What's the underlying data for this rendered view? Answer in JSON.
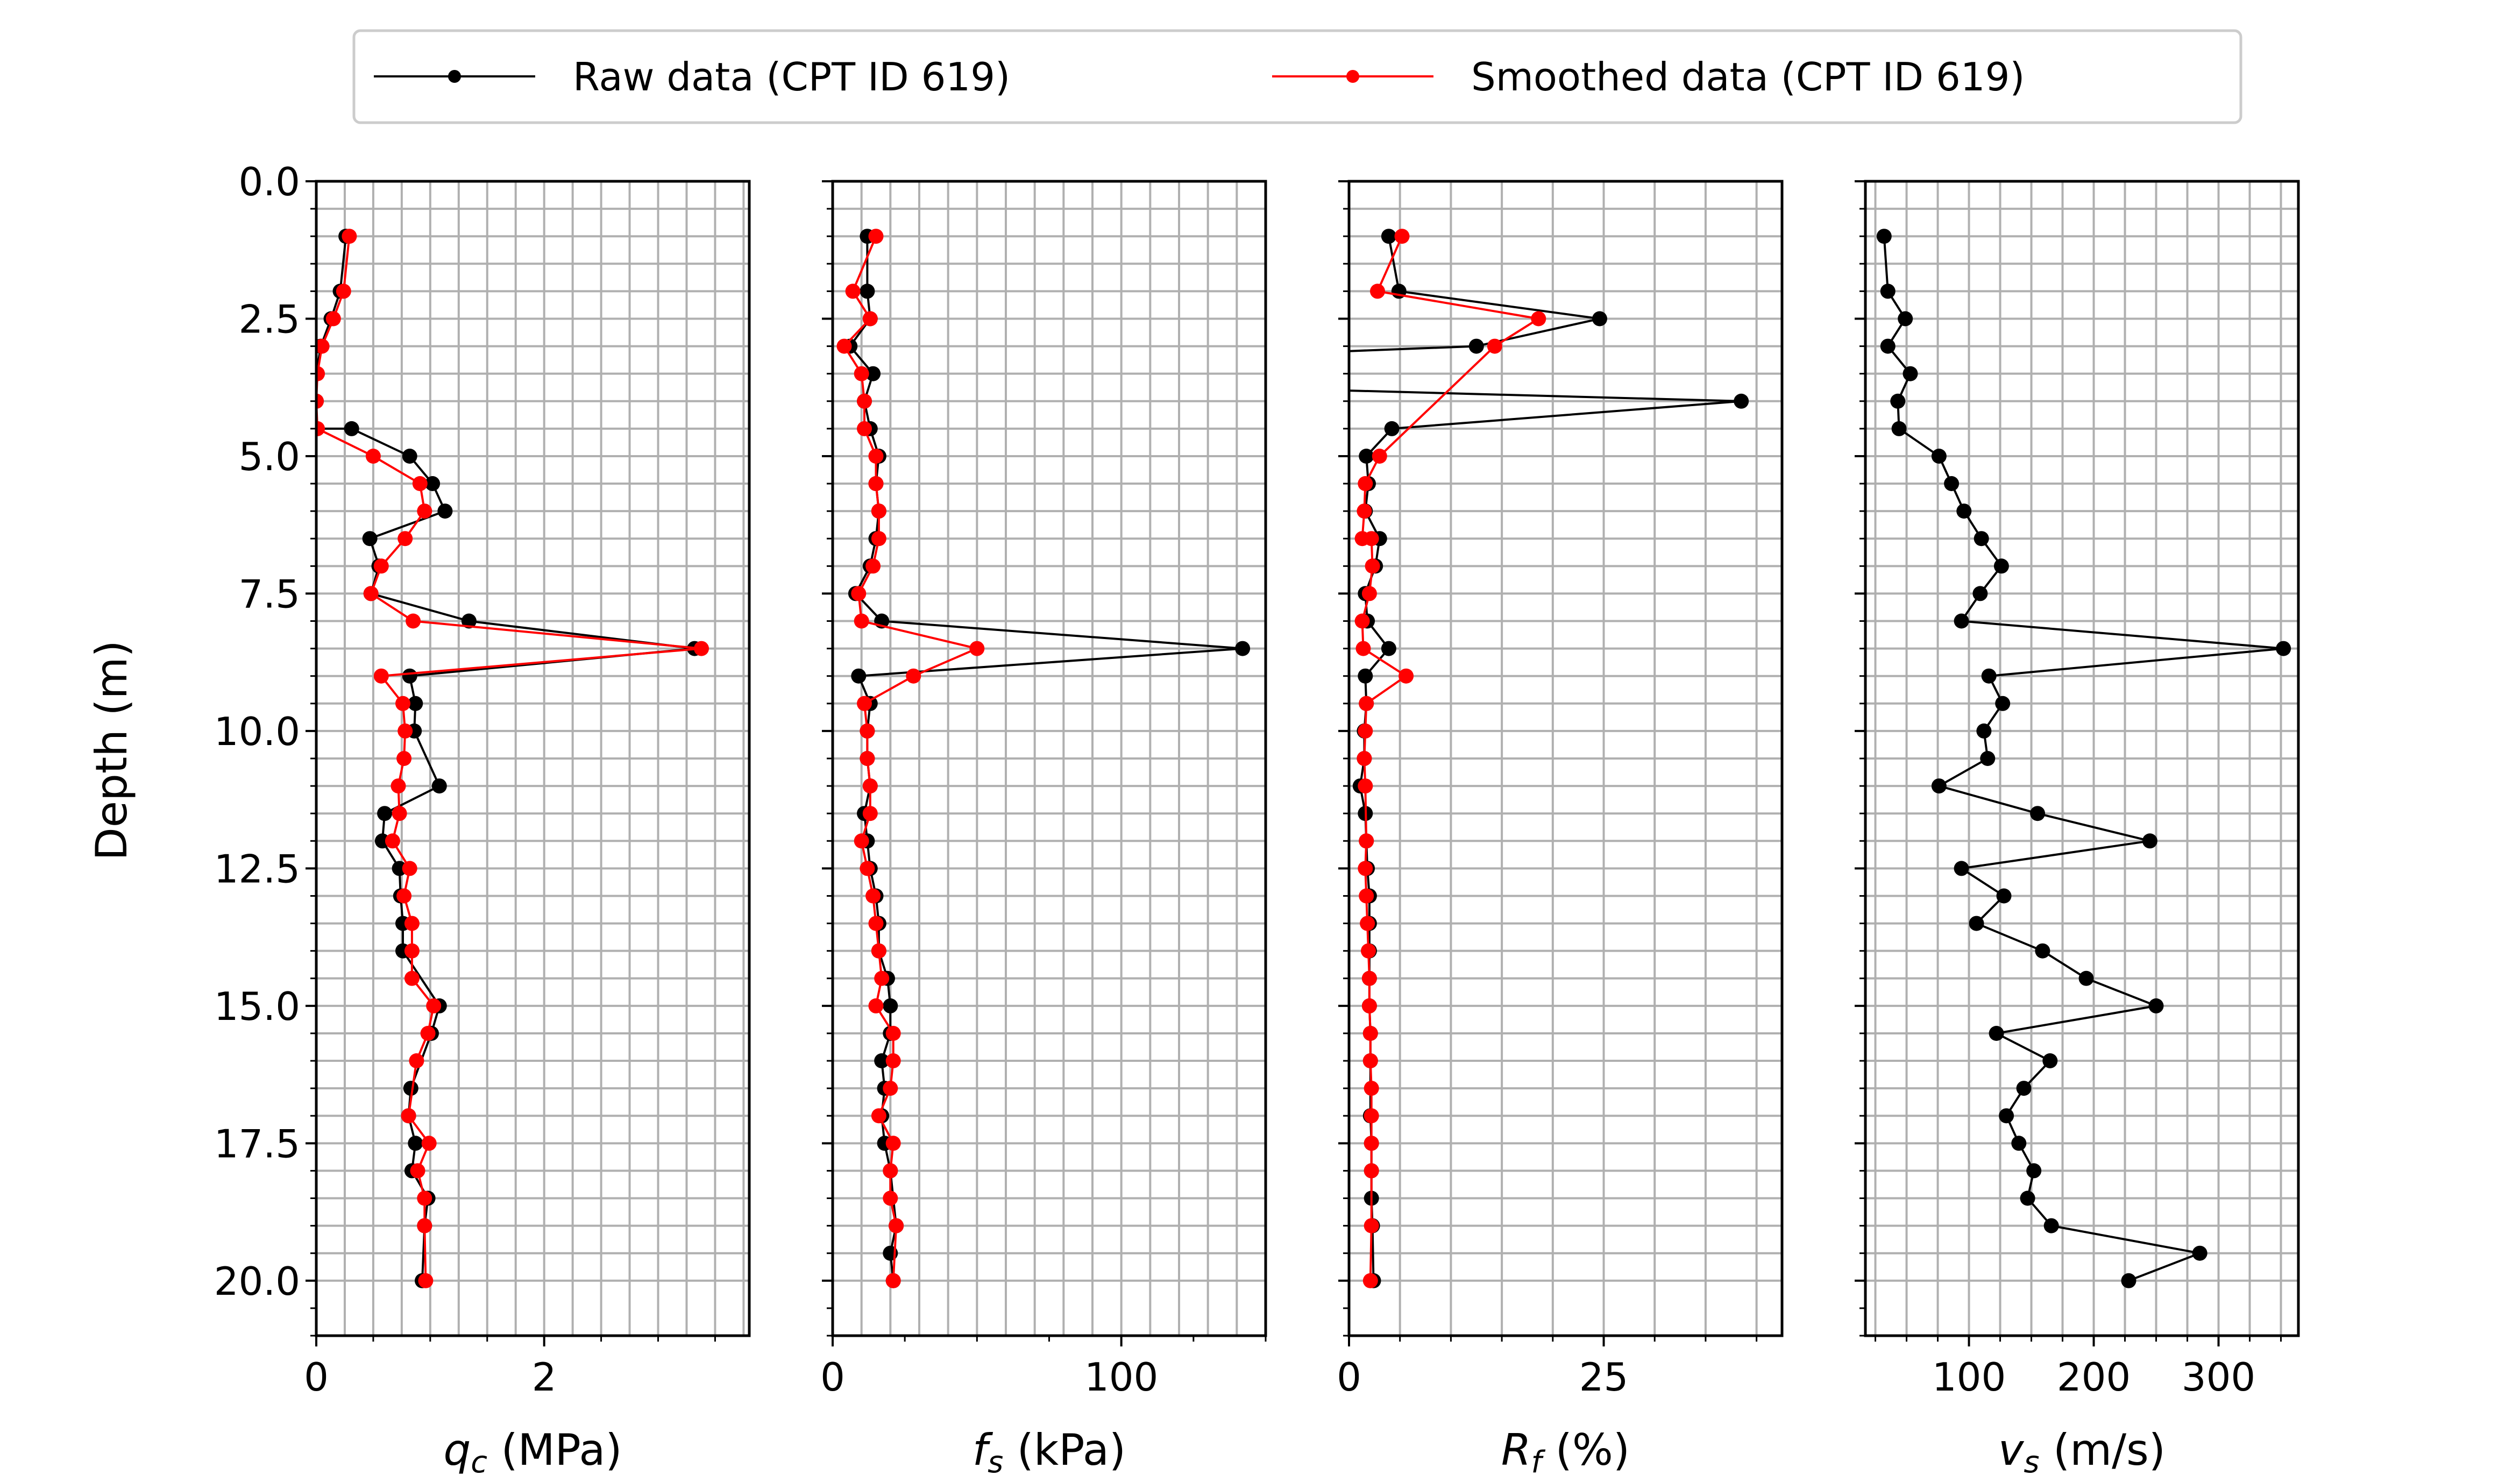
{
  "figure": {
    "ylabel": "Depth (m)",
    "legend": {
      "location": "top-center",
      "entries": [
        {
          "label": "Raw data (CPT ID 619)",
          "color": "#000000"
        },
        {
          "label": "Smoothed data (CPT ID 619)",
          "color": "#ff0000"
        }
      ]
    }
  },
  "colors": {
    "raw": "#000000",
    "smoothed": "#ff0000",
    "grid": "#b0b0b0"
  },
  "chart_data": [
    {
      "type": "line",
      "xlabel": {
        "sym": "q",
        "sub": "c",
        "unit": " (MPa)"
      },
      "xlim": [
        0,
        3.8
      ],
      "ylim": [
        21,
        0
      ],
      "grid": true,
      "xticks": [
        {
          "v": 0,
          "label": "0"
        },
        {
          "v": 2,
          "label": "2"
        }
      ],
      "xgrid": [
        0,
        0.25,
        0.5,
        0.75,
        1,
        1.25,
        1.5,
        1.75,
        2,
        2.25,
        2.5,
        2.75,
        3,
        3.25,
        3.5,
        3.75
      ],
      "yticks": [
        {
          "v": 0,
          "label": "0.0"
        },
        {
          "v": 2.5,
          "label": "2.5"
        },
        {
          "v": 5,
          "label": "5.0"
        },
        {
          "v": 7.5,
          "label": "7.5"
        },
        {
          "v": 10,
          "label": "10.0"
        },
        {
          "v": 12.5,
          "label": "12.5"
        },
        {
          "v": 15,
          "label": "15.0"
        },
        {
          "v": 17.5,
          "label": "17.5"
        },
        {
          "v": 20,
          "label": "20.0"
        }
      ],
      "series": [
        {
          "name": "Raw data (CPT ID 619)",
          "x": [
            0.26,
            0.21,
            0.13,
            0.04,
            0.0,
            0.0,
            0.0,
            0.31,
            0.82,
            1.02,
            1.13,
            0.47,
            0.55,
            0.48,
            1.34,
            3.32,
            0.82,
            0.87,
            0.86,
            1.08,
            0.6,
            0.58,
            0.73,
            0.74,
            0.76,
            0.76,
            1.08,
            1.01,
            0.83,
            0.81,
            0.87,
            0.84,
            0.98,
            0.95,
            0.93
          ],
          "y": [
            1.0,
            2.0,
            2.5,
            3.0,
            3.5,
            4.0,
            4.5,
            4.5,
            5.0,
            5.5,
            6.0,
            6.5,
            7.0,
            7.5,
            8.0,
            8.5,
            9.0,
            9.5,
            10.0,
            11.0,
            11.5,
            12.0,
            12.5,
            13.0,
            13.5,
            14.0,
            15.0,
            15.5,
            16.5,
            17.0,
            17.5,
            18.0,
            18.5,
            19.0,
            20.0
          ]
        },
        {
          "name": "Smoothed data (CPT ID 619)",
          "x": [
            0.29,
            0.24,
            0.15,
            0.05,
            0.01,
            0.0,
            0.01,
            0.5,
            0.91,
            0.95,
            0.78,
            0.57,
            0.48,
            0.85,
            3.38,
            0.57,
            0.76,
            0.78,
            0.77,
            0.72,
            0.73,
            0.67,
            0.82,
            0.77,
            0.84,
            0.84,
            0.84,
            1.03,
            0.98,
            0.88,
            0.81,
            0.99,
            0.89,
            0.95,
            0.95,
            0.96
          ],
          "y": [
            1.0,
            2.0,
            2.5,
            3.0,
            3.5,
            4.0,
            4.5,
            5.0,
            5.5,
            6.0,
            6.5,
            7.0,
            7.5,
            8.0,
            8.5,
            9.0,
            9.5,
            10.0,
            10.5,
            11.0,
            11.5,
            12.0,
            12.5,
            13.0,
            13.5,
            14.0,
            14.5,
            15.0,
            15.5,
            16.0,
            17.0,
            17.5,
            18.0,
            18.5,
            19.0,
            20.0
          ]
        }
      ]
    },
    {
      "type": "line",
      "xlabel": {
        "sym": "f",
        "sub": "s",
        "unit": " (kPa)"
      },
      "xlim": [
        0,
        150
      ],
      "ylim": [
        21,
        0
      ],
      "grid": true,
      "xticks": [
        {
          "v": 0,
          "label": "0"
        },
        {
          "v": 100,
          "label": "100"
        }
      ],
      "xgrid": [
        0,
        10,
        20,
        30,
        40,
        50,
        60,
        70,
        80,
        90,
        100,
        110,
        120,
        130,
        140
      ],
      "yticks": [
        {
          "v": 0,
          "label": ""
        },
        {
          "v": 2.5,
          "label": ""
        },
        {
          "v": 5,
          "label": ""
        },
        {
          "v": 7.5,
          "label": ""
        },
        {
          "v": 10,
          "label": ""
        },
        {
          "v": 12.5,
          "label": ""
        },
        {
          "v": 15,
          "label": ""
        },
        {
          "v": 17.5,
          "label": ""
        },
        {
          "v": 20,
          "label": ""
        }
      ],
      "series": [
        {
          "name": "Raw data (CPT ID 619)",
          "x": [
            12,
            12,
            13,
            6,
            14,
            11,
            13,
            16,
            15,
            16,
            15,
            13,
            8,
            17,
            142,
            9,
            13,
            12,
            12,
            13,
            11,
            12,
            13,
            15,
            16,
            16,
            19,
            20,
            20,
            17,
            18,
            17,
            18,
            20,
            22,
            20,
            21
          ],
          "y": [
            1.0,
            2.0,
            2.5,
            3.0,
            3.5,
            4.0,
            4.5,
            5.0,
            5.5,
            6.0,
            6.5,
            7.0,
            7.5,
            8.0,
            8.5,
            9.0,
            9.5,
            10.0,
            10.5,
            11.0,
            11.5,
            12.0,
            12.5,
            13.0,
            13.5,
            14.0,
            14.5,
            15.0,
            15.5,
            16.0,
            16.5,
            17.0,
            17.5,
            18.0,
            19.0,
            19.5,
            20.0
          ]
        },
        {
          "name": "Smoothed data (CPT ID 619)",
          "x": [
            15,
            7,
            13,
            4,
            10,
            11,
            11,
            15,
            15,
            16,
            16,
            14,
            9,
            10,
            50,
            28,
            11,
            12,
            12,
            13,
            13,
            10,
            12,
            14,
            15,
            16,
            17,
            15,
            21,
            21,
            20,
            16,
            21,
            20,
            20,
            22,
            21
          ],
          "y": [
            1.0,
            2.0,
            2.5,
            3.0,
            3.5,
            4.0,
            4.5,
            5.0,
            5.5,
            6.0,
            6.5,
            7.0,
            7.5,
            8.0,
            8.5,
            9.0,
            9.5,
            10.0,
            10.5,
            11.0,
            11.5,
            12.0,
            12.5,
            13.0,
            13.5,
            14.0,
            14.5,
            15.0,
            15.5,
            16.0,
            16.5,
            17.0,
            17.5,
            18.0,
            18.5,
            19.0,
            20.0
          ]
        }
      ]
    },
    {
      "type": "line",
      "xlabel": {
        "sym": "R",
        "sub": "f",
        "unit": " (%)"
      },
      "xlim": [
        0,
        42.5
      ],
      "ylim": [
        21,
        0
      ],
      "grid": true,
      "xticks": [
        {
          "v": 0,
          "label": "0"
        },
        {
          "v": 25,
          "label": "25"
        }
      ],
      "xgrid": [
        0,
        5,
        10,
        15,
        20,
        25,
        30,
        35,
        40
      ],
      "yticks": [
        {
          "v": 0,
          "label": ""
        },
        {
          "v": 2.5,
          "label": ""
        },
        {
          "v": 5,
          "label": ""
        },
        {
          "v": 7.5,
          "label": ""
        },
        {
          "v": 10,
          "label": ""
        },
        {
          "v": 12.5,
          "label": ""
        },
        {
          "v": 15,
          "label": ""
        },
        {
          "v": 17.5,
          "label": ""
        },
        {
          "v": 20,
          "label": ""
        }
      ],
      "series": [
        {
          "name": "Raw data (CPT ID 619)",
          "x": [
            3.9,
            4.9,
            24.6,
            12.5,
            -1.5,
            null,
            -1.5,
            38.5,
            4.2,
            1.7,
            1.9,
            1.6,
            3.0,
            2.6,
            1.6,
            1.8,
            3.9,
            1.6,
            1.7,
            1.5,
            1.5,
            1.1,
            1.6,
            1.7,
            1.8,
            2.0,
            2.0,
            2.0,
            2.0,
            2.0,
            2.1,
            2.1,
            2.1,
            2.2,
            2.2,
            2.2,
            2.3,
            2.4
          ],
          "y": [
            1.0,
            2.0,
            2.5,
            3.0,
            3.1,
            null,
            3.8,
            4.0,
            4.5,
            5.0,
            5.5,
            6.0,
            6.5,
            7.0,
            7.5,
            8.0,
            8.5,
            9.0,
            9.5,
            10.0,
            10.5,
            11.0,
            11.5,
            12.0,
            12.5,
            13.0,
            13.5,
            14.0,
            14.5,
            15.0,
            15.5,
            16.0,
            17.0,
            17.5,
            18.0,
            18.5,
            19.0,
            20.0
          ]
        },
        {
          "name": "Smoothed data (CPT ID 619)",
          "x": [
            5.2,
            2.8,
            18.6,
            14.3,
            3.0,
            1.6,
            1.5,
            1.3,
            2.2,
            2.3,
            2.0,
            1.3,
            1.4,
            5.6,
            1.7,
            1.6,
            1.5,
            1.6,
            1.7,
            1.6,
            1.7,
            1.8,
            1.9,
            2.0,
            2.0,
            2.1,
            2.1,
            2.2,
            2.2,
            2.2,
            2.2,
            2.2,
            2.1
          ],
          "y": [
            1.0,
            2.0,
            2.5,
            3.0,
            5.0,
            5.5,
            6.0,
            6.5,
            6.5,
            7.0,
            7.5,
            8.0,
            8.5,
            9.0,
            9.5,
            10.0,
            10.5,
            11.0,
            12.0,
            12.5,
            13.0,
            13.5,
            14.0,
            14.5,
            15.0,
            15.5,
            16.0,
            16.5,
            17.0,
            17.5,
            18.0,
            19.0,
            20.0
          ]
        }
      ]
    },
    {
      "type": "line",
      "xlabel": {
        "sym": "v",
        "sub": "s",
        "unit": " (m/s)"
      },
      "xlim": [
        17,
        364
      ],
      "ylim": [
        21,
        0
      ],
      "grid": true,
      "xticks": [
        {
          "v": 100,
          "label": "100"
        },
        {
          "v": 200,
          "label": "200"
        },
        {
          "v": 300,
          "label": "300"
        }
      ],
      "xgrid": [
        25,
        50,
        75,
        100,
        125,
        150,
        175,
        200,
        225,
        250,
        275,
        300,
        325,
        350
      ],
      "yticks": [
        {
          "v": 0,
          "label": ""
        },
        {
          "v": 2.5,
          "label": ""
        },
        {
          "v": 5,
          "label": ""
        },
        {
          "v": 7.5,
          "label": ""
        },
        {
          "v": 10,
          "label": ""
        },
        {
          "v": 12.5,
          "label": ""
        },
        {
          "v": 15,
          "label": ""
        },
        {
          "v": 17.5,
          "label": ""
        },
        {
          "v": 20,
          "label": ""
        }
      ],
      "series": [
        {
          "name": "Raw data (CPT ID 619)",
          "x": [
            32,
            35,
            49,
            35,
            53,
            43,
            44,
            76,
            86,
            96,
            110,
            126,
            109,
            94,
            352,
            116,
            127,
            112,
            115,
            76,
            155,
            245,
            94,
            128,
            106,
            159,
            194,
            250,
            122,
            165,
            144,
            130,
            140,
            152,
            147,
            166,
            285,
            228
          ],
          "y": [
            1.0,
            2.0,
            2.5,
            3.0,
            3.5,
            4.0,
            4.5,
            5.0,
            5.5,
            6.0,
            6.5,
            7.0,
            7.5,
            8.0,
            8.5,
            9.0,
            9.5,
            10.0,
            10.5,
            11.0,
            11.5,
            12.0,
            12.5,
            13.0,
            13.5,
            14.0,
            14.5,
            15.0,
            15.5,
            16.0,
            16.5,
            17.0,
            17.5,
            18.0,
            18.5,
            19.0,
            19.5,
            20.0
          ]
        }
      ]
    }
  ]
}
